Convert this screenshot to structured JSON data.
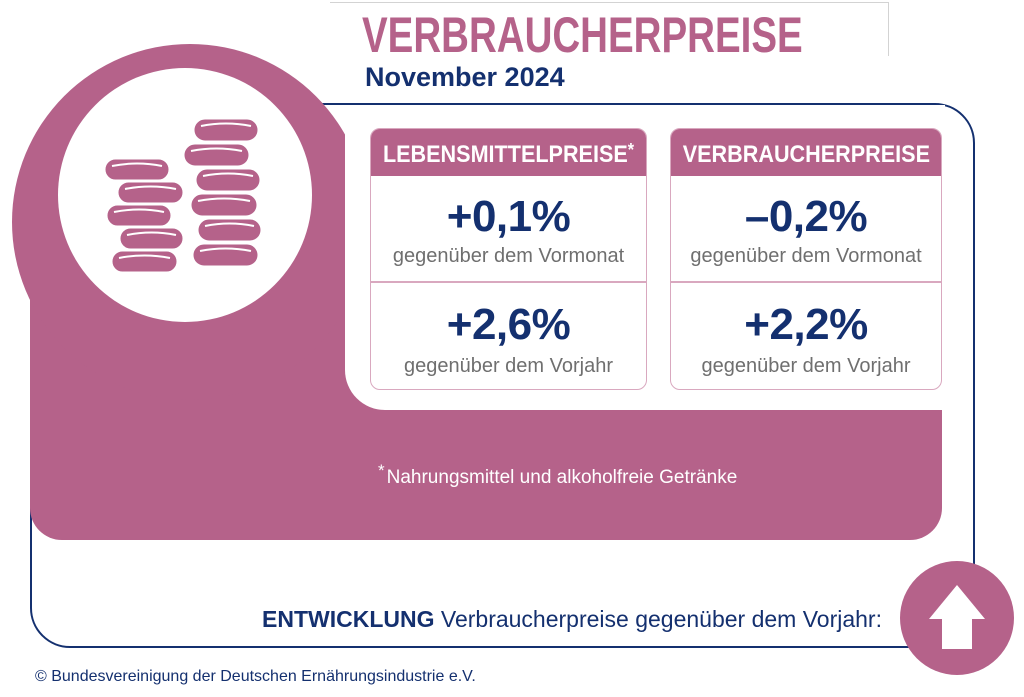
{
  "header": {
    "title": "VERBRAUCHERPREISE",
    "subtitle": "November 2024"
  },
  "icons": {
    "main": "coins-icon",
    "trend": "arrow-up-icon"
  },
  "panels": [
    {
      "title": "LEBENSMITTELPREISE",
      "title_marker": "*",
      "rows": [
        {
          "value": "+0,1%",
          "label": "gegenüber dem Vormonat"
        },
        {
          "value": "+2,6%",
          "label": "gegenüber dem Vorjahr"
        }
      ]
    },
    {
      "title": "VERBRAUCHERPREISE",
      "rows": [
        {
          "value": "–0,2%",
          "label": "gegenüber dem Vormonat"
        },
        {
          "value": "+2,2%",
          "label": "gegenüber dem Vorjahr"
        }
      ]
    }
  ],
  "footnote": {
    "marker": "*",
    "text": "Nahrungsmittel und alkoholfreie Getränke"
  },
  "trend": {
    "label_bold": "ENTWICKLUNG",
    "label_rest": "Verbraucherpreise gegenüber dem Vorjahr:"
  },
  "copyright": "© Bundesvereinigung der Deutschen Ernährungsindustrie e.V.",
  "colors": {
    "accent": "#b5628a",
    "navy": "#14306f",
    "label_gray": "#6f6f6f",
    "panel_border": "#d9a8bf"
  }
}
